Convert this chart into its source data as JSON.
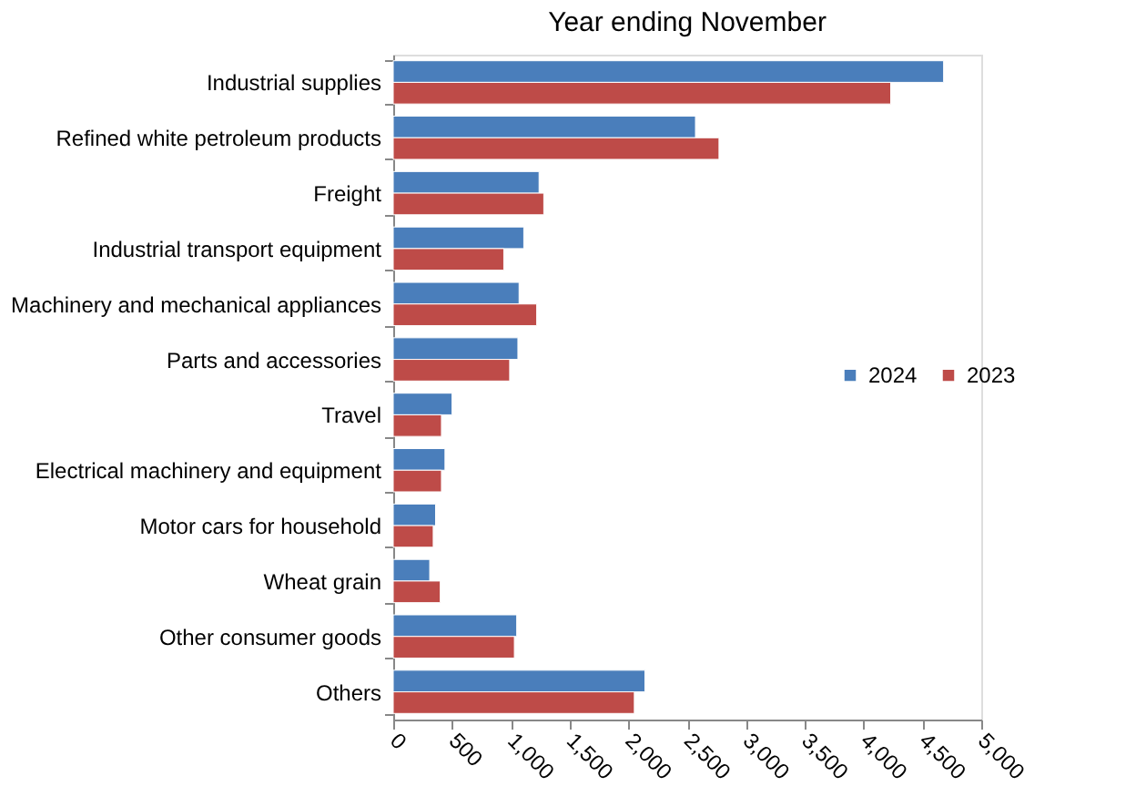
{
  "chart_data": {
    "type": "bar",
    "orientation": "horizontal",
    "title": "Year ending November",
    "categories": [
      "Industrial supplies",
      "Refined white petroleum products",
      "Freight",
      "Industrial transport equipment",
      "Machinery and mechanical appliances",
      "Parts and accessories",
      "Travel",
      "Electrical machinery and equipment",
      "Motor cars for household",
      "Wheat grain",
      "Other consumer goods",
      "Others"
    ],
    "series": [
      {
        "name": "2024",
        "color": "#4a7ebb",
        "values": [
          4680,
          2570,
          1240,
          1110,
          1070,
          1060,
          500,
          440,
          360,
          310,
          1050,
          2140
        ]
      },
      {
        "name": "2023",
        "color": "#be4b48",
        "values": [
          4230,
          2770,
          1280,
          940,
          1220,
          990,
          410,
          410,
          340,
          400,
          1030,
          2050
        ]
      }
    ],
    "xlim": [
      0,
      5000
    ],
    "xticks": [
      0,
      500,
      {
        "value": 1000,
        "label": "1,000"
      },
      {
        "value": 1500,
        "label": "1,500"
      },
      {
        "value": 2000,
        "label": "2,000"
      },
      {
        "value": 2500,
        "label": "2,500"
      },
      {
        "value": 3000,
        "label": "3,000"
      },
      {
        "value": 3500,
        "label": "3,500"
      },
      {
        "value": 4000,
        "label": "4,000"
      },
      {
        "value": 4500,
        "label": "4,500"
      },
      {
        "value": 5000,
        "label": "5,000"
      }
    ],
    "legend": "right",
    "grid": false
  }
}
